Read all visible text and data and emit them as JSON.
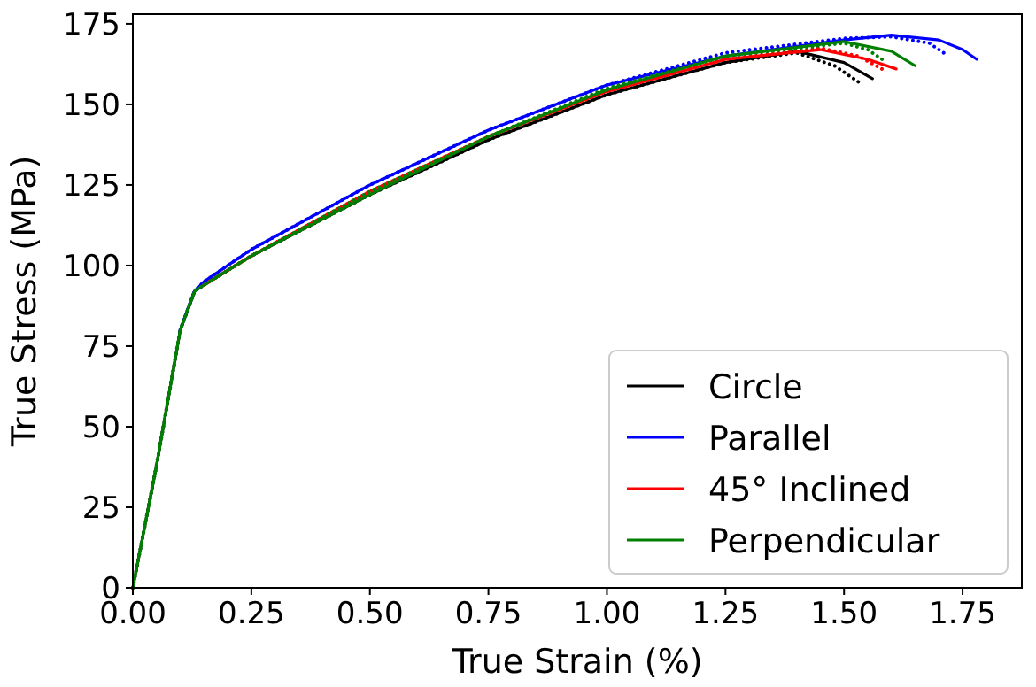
{
  "chart_data": {
    "type": "line",
    "xlabel": "True Strain (%)",
    "ylabel": "True Stress (MPa)",
    "xlim": [
      0,
      1.875
    ],
    "ylim": [
      0,
      178
    ],
    "xticks": [
      {
        "value": 0,
        "label": "0.00"
      },
      {
        "value": 0.25,
        "label": "0.25"
      },
      {
        "value": 0.5,
        "label": "0.50"
      },
      {
        "value": 0.75,
        "label": "0.75"
      },
      {
        "value": 1,
        "label": "1.00"
      },
      {
        "value": 1.25,
        "label": "1.25"
      },
      {
        "value": 1.5,
        "label": "1.50"
      },
      {
        "value": 1.75,
        "label": "1.75"
      }
    ],
    "yticks": [
      0,
      25,
      50,
      75,
      100,
      125,
      150,
      175
    ],
    "legend": "bottom right",
    "grid": false,
    "marker": "none",
    "series": [
      {
        "name": "Circle",
        "color": "#000000",
        "line_style": "solid",
        "x": [
          0,
          0.05,
          0.1,
          0.13,
          0.15,
          0.25,
          0.5,
          0.75,
          1.0,
          1.25,
          1.4,
          1.5,
          1.56
        ],
        "values": [
          0,
          38,
          80,
          92,
          94,
          103,
          122,
          139,
          153,
          163,
          166.5,
          163,
          158
        ]
      },
      {
        "color": "#000000",
        "line_style": "dotted",
        "x": [
          0,
          0.05,
          0.1,
          0.13,
          0.15,
          0.25,
          0.5,
          0.75,
          1.0,
          1.25,
          1.4,
          1.48,
          1.53
        ],
        "values": [
          0,
          38,
          80,
          92,
          94,
          103,
          122,
          139,
          153,
          163,
          166,
          162,
          157
        ]
      },
      {
        "name": "Parallel",
        "color": "#0000ff",
        "line_style": "solid",
        "x": [
          0.1,
          0.13,
          0.15,
          0.25,
          0.5,
          0.75,
          1.0,
          1.25,
          1.5,
          1.6,
          1.7,
          1.75,
          1.78
        ],
        "values": [
          80,
          92,
          95,
          105,
          125,
          142,
          156,
          165,
          170,
          171.5,
          170,
          167,
          164
        ]
      },
      {
        "color": "#0000ff",
        "line_style": "dotted",
        "x": [
          0.1,
          0.13,
          0.15,
          0.25,
          0.5,
          0.75,
          1.0,
          1.25,
          1.5,
          1.6,
          1.68,
          1.72
        ],
        "values": [
          80,
          92,
          95,
          105,
          125,
          142,
          156,
          166,
          170.5,
          171,
          169,
          165
        ]
      },
      {
        "name": "45° Inclined",
        "color": "#ff0000",
        "line_style": "solid",
        "x": [
          0.15,
          0.25,
          0.5,
          0.75,
          1.0,
          1.25,
          1.45,
          1.55,
          1.61
        ],
        "values": [
          94,
          103,
          123,
          140,
          154,
          164,
          167,
          164,
          161
        ]
      },
      {
        "color": "#ff0000",
        "line_style": "dotted",
        "x": [
          0.15,
          0.25,
          0.5,
          0.75,
          1.0,
          1.25,
          1.45,
          1.53,
          1.58
        ],
        "values": [
          94,
          103,
          123,
          140,
          154,
          164,
          167.5,
          165,
          161
        ]
      },
      {
        "name": "Perpendicular",
        "color": "#008000",
        "line_style": "solid",
        "x": [
          0,
          0.05,
          0.1,
          0.13,
          0.15,
          0.25,
          0.5,
          0.75,
          1.0,
          1.25,
          1.5,
          1.6,
          1.65
        ],
        "values": [
          0,
          38,
          80,
          92,
          94,
          103,
          122,
          140,
          154.5,
          165,
          169.5,
          166.5,
          162
        ]
      },
      {
        "color": "#008000",
        "line_style": "dotted",
        "x": [
          0,
          0.05,
          0.1,
          0.13,
          0.15,
          0.25,
          0.5,
          0.75,
          1.0,
          1.25,
          1.5,
          1.55,
          1.58
        ],
        "values": [
          0,
          38,
          80,
          92,
          94,
          103,
          123,
          140,
          155,
          165,
          169,
          167,
          164
        ]
      }
    ]
  }
}
